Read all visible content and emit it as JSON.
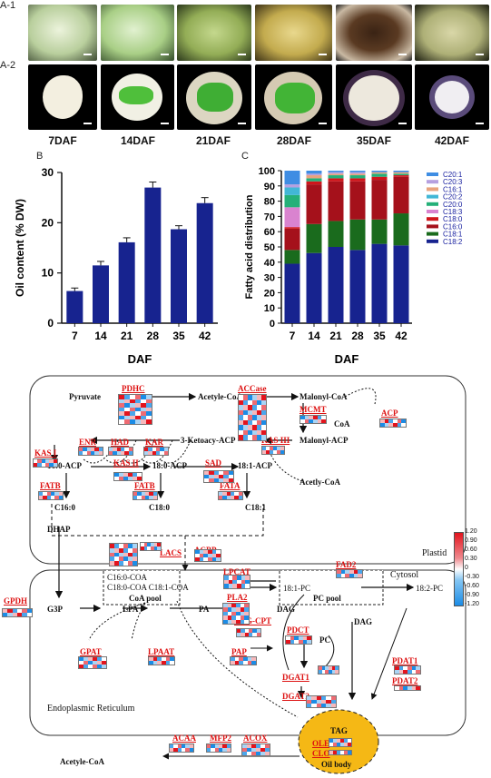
{
  "panelA": {
    "row1_label": "A-1",
    "row2_label": "A-2",
    "stages": [
      "7DAF",
      "14DAF",
      "21DAF",
      "28DAF",
      "35DAF",
      "42DAF"
    ]
  },
  "panelB": {
    "label": "B",
    "chart_data": {
      "type": "bar",
      "categories": [
        "7",
        "14",
        "21",
        "28",
        "35",
        "42"
      ],
      "values": [
        6.4,
        11.5,
        16.1,
        27.0,
        18.7,
        23.9
      ],
      "errors": [
        0.6,
        0.8,
        0.9,
        1.1,
        0.7,
        1.1
      ],
      "xlabel": "DAF",
      "ylabel": "Oil content (% DW)",
      "ylim": [
        0,
        30
      ],
      "yticks": [
        0,
        10,
        20,
        30
      ],
      "color": "#17238f"
    }
  },
  "panelC": {
    "label": "C",
    "chart_data": {
      "type": "bar",
      "stacked": true,
      "categories": [
        "7",
        "14",
        "21",
        "28",
        "35",
        "42"
      ],
      "xlabel": "DAF",
      "ylabel": "Fatty acid distribution",
      "ylim": [
        0,
        100
      ],
      "yticks": [
        0,
        10,
        20,
        30,
        40,
        50,
        60,
        70,
        80,
        90,
        100
      ],
      "series": [
        {
          "name": "C18:2",
          "color": "#17238f",
          "values": [
            39,
            46,
            50,
            48,
            52,
            51
          ]
        },
        {
          "name": "C18:1",
          "color": "#1a6b1d",
          "values": [
            9,
            19,
            17,
            20,
            16,
            21
          ]
        },
        {
          "name": "C16:0",
          "color": "#a5111b",
          "values": [
            14,
            26,
            26,
            25,
            26,
            24
          ]
        },
        {
          "name": "C18:0",
          "color": "#d0151b",
          "values": [
            1,
            2,
            2,
            2,
            2,
            1
          ]
        },
        {
          "name": "C18:3",
          "color": "#d983cf",
          "values": [
            13,
            0,
            0,
            0,
            0,
            0
          ]
        },
        {
          "name": "C20:0",
          "color": "#25b079",
          "values": [
            8,
            2,
            2,
            2,
            2,
            1
          ]
        },
        {
          "name": "C20:2",
          "color": "#42b7d6",
          "values": [
            5,
            0,
            0,
            0,
            0,
            0
          ]
        },
        {
          "name": "C16:1",
          "color": "#e8a37e",
          "values": [
            0,
            2,
            1,
            1,
            1,
            1
          ]
        },
        {
          "name": "C20:3",
          "color": "#b5a0e0",
          "values": [
            2,
            1,
            1,
            1,
            0,
            0
          ]
        },
        {
          "name": "C20:1",
          "color": "#3f8de3",
          "values": [
            9,
            2,
            1,
            1,
            1,
            1
          ]
        }
      ]
    }
  },
  "pathway": {
    "metabolites": {
      "pyruvate": "Pyruvate",
      "acetyl_coa": "Acetyle-CoA",
      "malonyl_coa": "Malonyl-CoA",
      "coa": "CoA",
      "ketoacy_acp": "3-Ketoacy-ACP",
      "malonyl_acp": "Malonyl-ACP",
      "acetly_coa": "Acetly-CoA",
      "c160_acp": "16:0-ACP",
      "c180_acp": "18:0-ACP",
      "c181_acp": "18:1-ACP",
      "c160": "C16:0",
      "c180": "C18:0",
      "c181": "C18:1",
      "dhap": "DHAP",
      "g3p": "G3P",
      "lpa": "LPA",
      "pa": "PA",
      "dag": "DAG",
      "dag2": "DAG",
      "pc": "PC",
      "pc181": "18:1-PC",
      "pc182": "18:2-PC",
      "tag": "TAG",
      "acetyl_coa2": "Acetyle-CoA",
      "coa_pool_line1": "C16:0-COA",
      "coa_pool_line2": "C18:0-COA  C18:1-COA",
      "coa_pool": "CoA pool",
      "pc_pool": "PC pool"
    },
    "enzymes": {
      "pdhc": "PDHC",
      "accase": "ACCase",
      "mcmt": "MCMT",
      "acp": "ACP",
      "enr": "ENR",
      "had": "HAD",
      "kar": "KAR",
      "kasiii": "KAS III",
      "kasi": "KAS I",
      "kasii": "KAS II",
      "sad": "SAD",
      "fatb": "FATB",
      "fatb2": "FATB",
      "fata": "FATA",
      "lacs": "LACS",
      "acbp": "ACBP",
      "gpdh": "GPDH",
      "lpcat": "LPCAT",
      "fad2": "FAD2",
      "pla2": "PLA2",
      "dagcpt": "DAG-CPT",
      "pdct": "PDCT",
      "gpat": "GPAT",
      "lpaat": "LPAAT",
      "pap": "PAP",
      "dgat1": "DGAT1",
      "dgat2": "DGAT2",
      "pdat1": "PDAT1",
      "pdat2": "PDAT2",
      "ole": "OLE",
      "clo": "CLO",
      "acaa": "ACAA",
      "mfp2": "MFP2",
      "acox": "ACOX"
    },
    "regions": {
      "plastid": "Plastid",
      "cytosol": "Cytosol",
      "er": "Endoplasmic Reticulum",
      "oil_body": "Oil body"
    },
    "colorbar": {
      "ticks": [
        "1.20",
        "0.90",
        "0.60",
        "0.30",
        "0",
        "-0.30",
        "-0.60",
        "-0.90",
        "-1.20"
      ]
    }
  }
}
